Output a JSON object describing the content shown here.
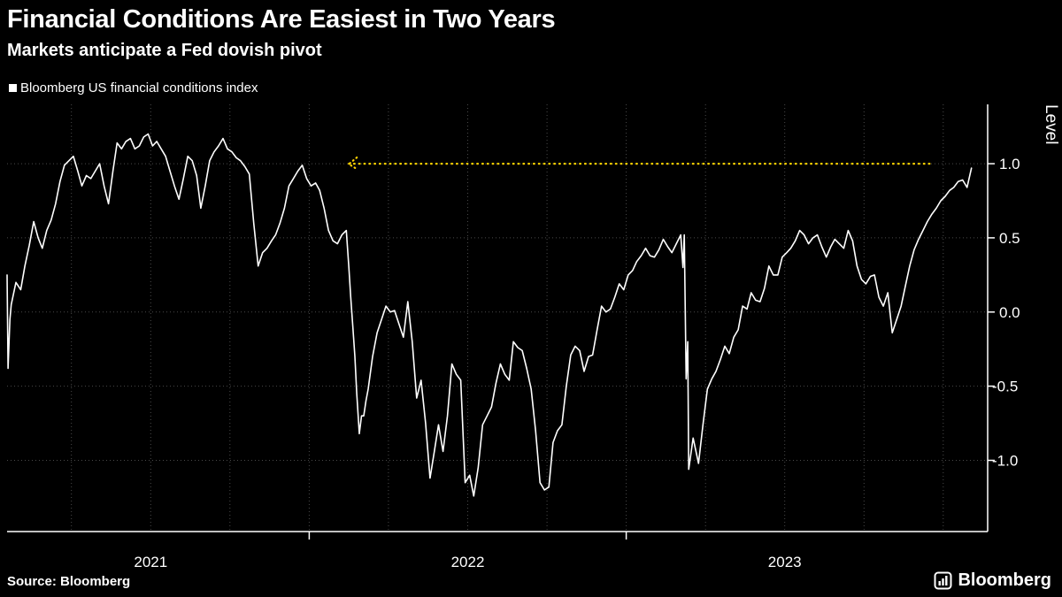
{
  "page": {
    "background": "#000000"
  },
  "chart_data": {
    "type": "line",
    "title": "Financial Conditions Are Easiest in Two Years",
    "subtitle": "Markets anticipate a Fed dovish pivot",
    "legend_label": "Bloomberg US financial conditions index",
    "source": "Source: Bloomberg",
    "brand": "Bloomberg",
    "xlabel": "",
    "ylabel": "Level",
    "grid_on": true,
    "legend_position": "top-left",
    "xlim": [
      2021.047,
      2024.14
    ],
    "ylim": [
      -1.48,
      1.4
    ],
    "yticks": [
      {
        "value": 1.0,
        "label": "1.0"
      },
      {
        "value": 0.5,
        "label": "0.5"
      },
      {
        "value": 0.0,
        "label": "0.0"
      },
      {
        "value": -0.5,
        "label": "-0.5"
      },
      {
        "value": -1.0,
        "label": "-1.0"
      }
    ],
    "year_labels": [
      {
        "label": "2021",
        "x": 2021.5
      },
      {
        "label": "2022",
        "x": 2022.5
      },
      {
        "label": "2023",
        "x": 2023.5
      }
    ],
    "x_axis_ticks": [
      2022,
      2023
    ],
    "grid": {
      "x_start": 2021.25,
      "x_step": 0.25,
      "x_end": 2024.0
    },
    "colors": {
      "background": "#000000",
      "line": "#ffffff",
      "annotation": "#FFD100",
      "grid": "#4a4a4a",
      "axis": "#ffffff",
      "text": "#ffffff"
    },
    "annotation": {
      "type": "dotted-horizontal-line",
      "level": 1.0,
      "x_start": 2022.125,
      "x_end": 2023.958
    },
    "series": [
      {
        "name": "Bloomberg US financial conditions index",
        "color": "#ffffff",
        "points": [
          [
            2021.047,
            0.25
          ],
          [
            2021.05,
            -0.38
          ],
          [
            2021.056,
            -0.05
          ],
          [
            2021.06,
            0.05
          ],
          [
            2021.075,
            0.2
          ],
          [
            2021.09,
            0.15
          ],
          [
            2021.103,
            0.31
          ],
          [
            2021.117,
            0.45
          ],
          [
            2021.131,
            0.61
          ],
          [
            2021.145,
            0.5
          ],
          [
            2021.158,
            0.43
          ],
          [
            2021.172,
            0.55
          ],
          [
            2021.186,
            0.62
          ],
          [
            2021.2,
            0.73
          ],
          [
            2021.214,
            0.88
          ],
          [
            2021.228,
            0.99
          ],
          [
            2021.242,
            1.02
          ],
          [
            2021.256,
            1.05
          ],
          [
            2021.27,
            0.95
          ],
          [
            2021.283,
            0.85
          ],
          [
            2021.297,
            0.92
          ],
          [
            2021.311,
            0.9
          ],
          [
            2021.325,
            0.95
          ],
          [
            2021.339,
            1.0
          ],
          [
            2021.353,
            0.85
          ],
          [
            2021.367,
            0.73
          ],
          [
            2021.381,
            0.95
          ],
          [
            2021.394,
            1.14
          ],
          [
            2021.408,
            1.1
          ],
          [
            2021.422,
            1.15
          ],
          [
            2021.436,
            1.17
          ],
          [
            2021.45,
            1.1
          ],
          [
            2021.464,
            1.12
          ],
          [
            2021.478,
            1.18
          ],
          [
            2021.492,
            1.2
          ],
          [
            2021.506,
            1.12
          ],
          [
            2021.519,
            1.15
          ],
          [
            2021.533,
            1.1
          ],
          [
            2021.547,
            1.05
          ],
          [
            2021.561,
            0.95
          ],
          [
            2021.575,
            0.85
          ],
          [
            2021.589,
            0.76
          ],
          [
            2021.603,
            0.9
          ],
          [
            2021.617,
            1.05
          ],
          [
            2021.631,
            1.02
          ],
          [
            2021.645,
            0.92
          ],
          [
            2021.658,
            0.7
          ],
          [
            2021.672,
            0.85
          ],
          [
            2021.686,
            1.02
          ],
          [
            2021.7,
            1.08
          ],
          [
            2021.714,
            1.12
          ],
          [
            2021.728,
            1.17
          ],
          [
            2021.742,
            1.1
          ],
          [
            2021.756,
            1.08
          ],
          [
            2021.77,
            1.04
          ],
          [
            2021.783,
            1.02
          ],
          [
            2021.797,
            0.98
          ],
          [
            2021.811,
            0.93
          ],
          [
            2021.825,
            0.6
          ],
          [
            2021.839,
            0.31
          ],
          [
            2021.853,
            0.4
          ],
          [
            2021.867,
            0.43
          ],
          [
            2021.881,
            0.48
          ],
          [
            2021.894,
            0.52
          ],
          [
            2021.908,
            0.6
          ],
          [
            2021.922,
            0.7
          ],
          [
            2021.936,
            0.85
          ],
          [
            2021.95,
            0.9
          ],
          [
            2021.964,
            0.95
          ],
          [
            2021.978,
            0.99
          ],
          [
            2021.992,
            0.9
          ],
          [
            2022.006,
            0.85
          ],
          [
            2022.02,
            0.87
          ],
          [
            2022.033,
            0.82
          ],
          [
            2022.047,
            0.7
          ],
          [
            2022.061,
            0.55
          ],
          [
            2022.075,
            0.48
          ],
          [
            2022.089,
            0.46
          ],
          [
            2022.103,
            0.52
          ],
          [
            2022.117,
            0.55
          ],
          [
            2022.125,
            0.3
          ],
          [
            2022.131,
            0.1
          ],
          [
            2022.138,
            -0.11
          ],
          [
            2022.144,
            -0.3
          ],
          [
            2022.15,
            -0.55
          ],
          [
            2022.158,
            -0.82
          ],
          [
            2022.165,
            -0.7
          ],
          [
            2022.172,
            -0.7
          ],
          [
            2022.179,
            -0.6
          ],
          [
            2022.186,
            -0.52
          ],
          [
            2022.2,
            -0.3
          ],
          [
            2022.214,
            -0.14
          ],
          [
            2022.228,
            -0.05
          ],
          [
            2022.242,
            0.04
          ],
          [
            2022.256,
            0.0
          ],
          [
            2022.269,
            0.01
          ],
          [
            2022.283,
            -0.08
          ],
          [
            2022.297,
            -0.17
          ],
          [
            2022.304,
            -0.05
          ],
          [
            2022.311,
            0.07
          ],
          [
            2022.325,
            -0.2
          ],
          [
            2022.339,
            -0.58
          ],
          [
            2022.353,
            -0.46
          ],
          [
            2022.367,
            -0.75
          ],
          [
            2022.381,
            -1.12
          ],
          [
            2022.394,
            -0.95
          ],
          [
            2022.408,
            -0.76
          ],
          [
            2022.422,
            -0.94
          ],
          [
            2022.436,
            -0.7
          ],
          [
            2022.45,
            -0.35
          ],
          [
            2022.464,
            -0.42
          ],
          [
            2022.478,
            -0.46
          ],
          [
            2022.492,
            -1.15
          ],
          [
            2022.506,
            -1.1
          ],
          [
            2022.519,
            -1.24
          ],
          [
            2022.533,
            -1.05
          ],
          [
            2022.547,
            -0.76
          ],
          [
            2022.561,
            -0.7
          ],
          [
            2022.575,
            -0.64
          ],
          [
            2022.589,
            -0.48
          ],
          [
            2022.603,
            -0.35
          ],
          [
            2022.617,
            -0.42
          ],
          [
            2022.631,
            -0.46
          ],
          [
            2022.644,
            -0.2
          ],
          [
            2022.658,
            -0.24
          ],
          [
            2022.672,
            -0.26
          ],
          [
            2022.686,
            -0.38
          ],
          [
            2022.7,
            -0.52
          ],
          [
            2022.714,
            -0.8
          ],
          [
            2022.728,
            -1.15
          ],
          [
            2022.742,
            -1.2
          ],
          [
            2022.756,
            -1.18
          ],
          [
            2022.769,
            -0.88
          ],
          [
            2022.783,
            -0.8
          ],
          [
            2022.797,
            -0.76
          ],
          [
            2022.811,
            -0.5
          ],
          [
            2022.825,
            -0.29
          ],
          [
            2022.839,
            -0.23
          ],
          [
            2022.853,
            -0.26
          ],
          [
            2022.867,
            -0.4
          ],
          [
            2022.881,
            -0.3
          ],
          [
            2022.894,
            -0.29
          ],
          [
            2022.908,
            -0.12
          ],
          [
            2022.922,
            0.04
          ],
          [
            2022.936,
            0.0
          ],
          [
            2022.95,
            0.02
          ],
          [
            2022.964,
            0.1
          ],
          [
            2022.978,
            0.19
          ],
          [
            2022.992,
            0.15
          ],
          [
            2023.006,
            0.25
          ],
          [
            2023.02,
            0.28
          ],
          [
            2023.033,
            0.34
          ],
          [
            2023.047,
            0.38
          ],
          [
            2023.061,
            0.43
          ],
          [
            2023.075,
            0.38
          ],
          [
            2023.089,
            0.37
          ],
          [
            2023.103,
            0.42
          ],
          [
            2023.117,
            0.49
          ],
          [
            2023.131,
            0.44
          ],
          [
            2023.144,
            0.4
          ],
          [
            2023.158,
            0.46
          ],
          [
            2023.172,
            0.52
          ],
          [
            2023.179,
            0.3
          ],
          [
            2023.183,
            0.52
          ],
          [
            2023.189,
            -0.45
          ],
          [
            2023.194,
            -0.2
          ],
          [
            2023.197,
            -1.06
          ],
          [
            2023.211,
            -0.85
          ],
          [
            2023.228,
            -1.02
          ],
          [
            2023.242,
            -0.76
          ],
          [
            2023.256,
            -0.52
          ],
          [
            2023.27,
            -0.45
          ],
          [
            2023.283,
            -0.4
          ],
          [
            2023.297,
            -0.32
          ],
          [
            2023.311,
            -0.23
          ],
          [
            2023.325,
            -0.28
          ],
          [
            2023.339,
            -0.17
          ],
          [
            2023.353,
            -0.12
          ],
          [
            2023.367,
            0.04
          ],
          [
            2023.381,
            0.02
          ],
          [
            2023.394,
            0.13
          ],
          [
            2023.408,
            0.08
          ],
          [
            2023.422,
            0.07
          ],
          [
            2023.436,
            0.16
          ],
          [
            2023.45,
            0.31
          ],
          [
            2023.464,
            0.25
          ],
          [
            2023.478,
            0.25
          ],
          [
            2023.492,
            0.37
          ],
          [
            2023.506,
            0.4
          ],
          [
            2023.519,
            0.43
          ],
          [
            2023.533,
            0.48
          ],
          [
            2023.547,
            0.55
          ],
          [
            2023.561,
            0.52
          ],
          [
            2023.575,
            0.46
          ],
          [
            2023.589,
            0.5
          ],
          [
            2023.603,
            0.52
          ],
          [
            2023.617,
            0.44
          ],
          [
            2023.631,
            0.37
          ],
          [
            2023.645,
            0.44
          ],
          [
            2023.658,
            0.49
          ],
          [
            2023.672,
            0.46
          ],
          [
            2023.686,
            0.43
          ],
          [
            2023.7,
            0.55
          ],
          [
            2023.714,
            0.48
          ],
          [
            2023.728,
            0.31
          ],
          [
            2023.742,
            0.22
          ],
          [
            2023.756,
            0.19
          ],
          [
            2023.77,
            0.24
          ],
          [
            2023.783,
            0.25
          ],
          [
            2023.797,
            0.1
          ],
          [
            2023.811,
            0.04
          ],
          [
            2023.825,
            0.13
          ],
          [
            2023.839,
            -0.14
          ],
          [
            2023.853,
            -0.05
          ],
          [
            2023.867,
            0.04
          ],
          [
            2023.881,
            0.18
          ],
          [
            2023.894,
            0.31
          ],
          [
            2023.908,
            0.42
          ],
          [
            2023.922,
            0.49
          ],
          [
            2023.936,
            0.55
          ],
          [
            2023.95,
            0.61
          ],
          [
            2023.964,
            0.66
          ],
          [
            2023.978,
            0.7
          ],
          [
            2023.992,
            0.75
          ],
          [
            2024.006,
            0.78
          ],
          [
            2024.02,
            0.82
          ],
          [
            2024.033,
            0.84
          ],
          [
            2024.047,
            0.88
          ],
          [
            2024.061,
            0.89
          ],
          [
            2024.075,
            0.84
          ],
          [
            2024.089,
            0.97
          ]
        ]
      }
    ]
  }
}
